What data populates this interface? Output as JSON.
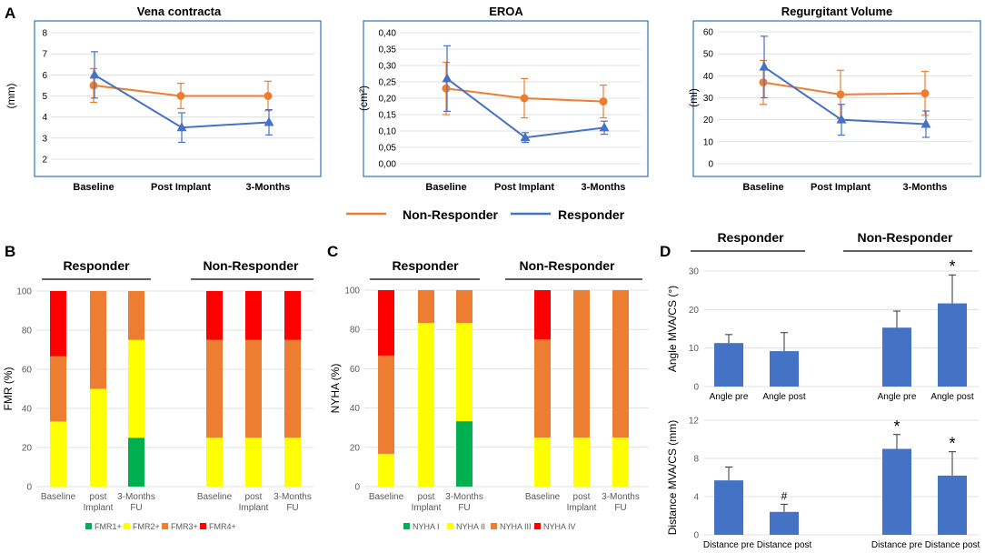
{
  "colors": {
    "orange": "#ED7D31",
    "blue": "#4472C4",
    "fmr1": "#00B050",
    "fmr2": "#FFFF00",
    "fmr3": "#ED7D31",
    "fmr4": "#FF0000",
    "bar": "#4472C4",
    "frame": "#2E75B6",
    "grid": "#D9D9D9",
    "axisText": "#595959"
  },
  "panel_labels": [
    "A",
    "B",
    "C",
    "D"
  ],
  "legend_top": {
    "non_responder": "Non-Responder",
    "responder": "Responder"
  },
  "chart_data": [
    {
      "id": "vena",
      "type": "line",
      "title": "Vena contracta",
      "ylabel": "(mm)",
      "ylim": [
        2,
        8
      ],
      "yticks": [
        "2",
        "3",
        "4",
        "5",
        "6",
        "7",
        "8"
      ],
      "categories": [
        "Baseline",
        "Post Implant",
        "3-Months"
      ],
      "series": [
        {
          "name": "Non-Responder",
          "marker": "circle",
          "values": [
            5.5,
            5.0,
            5.0
          ],
          "err_low": [
            0.8,
            0.6,
            0.7
          ],
          "err_high": [
            0.8,
            0.6,
            0.7
          ]
        },
        {
          "name": "Responder",
          "marker": "triangle",
          "values": [
            6.0,
            3.5,
            3.75
          ],
          "err_low": [
            1.1,
            0.7,
            0.6
          ],
          "err_high": [
            1.1,
            0.7,
            0.6
          ]
        }
      ]
    },
    {
      "id": "eroa",
      "type": "line",
      "title": "EROA",
      "ylabel": "(cm²)",
      "ylim": [
        0,
        0.4
      ],
      "yticks": [
        "0,00",
        "0,05",
        "0,10",
        "0,15",
        "0,20",
        "0,25",
        "0,30",
        "0,35",
        "0,40"
      ],
      "categories": [
        "Baseline",
        "Post Implant",
        "3-Months"
      ],
      "series": [
        {
          "name": "Non-Responder",
          "marker": "circle",
          "values": [
            0.23,
            0.2,
            0.19
          ],
          "err_low": [
            0.08,
            0.06,
            0.05
          ],
          "err_high": [
            0.08,
            0.06,
            0.05
          ]
        },
        {
          "name": "Responder",
          "marker": "triangle",
          "values": [
            0.26,
            0.08,
            0.11
          ],
          "err_low": [
            0.1,
            0.015,
            0.02
          ],
          "err_high": [
            0.1,
            0.015,
            0.02
          ]
        }
      ]
    },
    {
      "id": "regvol",
      "type": "line",
      "title": "Regurgitant Volume",
      "ylabel": "(ml)",
      "ylim": [
        0,
        60
      ],
      "yticks": [
        "0",
        "10",
        "20",
        "30",
        "40",
        "50",
        "60"
      ],
      "categories": [
        "Baseline",
        "Post Implant",
        "3-Months"
      ],
      "series": [
        {
          "name": "Non-Responder",
          "marker": "circle",
          "values": [
            37,
            31.5,
            32
          ],
          "err_low": [
            10,
            11,
            10
          ],
          "err_high": [
            10,
            11,
            10
          ]
        },
        {
          "name": "Responder",
          "marker": "triangle",
          "values": [
            44,
            20,
            18
          ],
          "err_low": [
            14,
            7,
            6
          ],
          "err_high": [
            14,
            7,
            6
          ]
        }
      ]
    },
    {
      "id": "fmr",
      "type": "bar",
      "stacked": true,
      "ylabel": "FMR (%)",
      "ylim": [
        0,
        100
      ],
      "yticks": [
        "0",
        "20",
        "40",
        "60",
        "80",
        "100"
      ],
      "group_labels": [
        "Responder",
        "Non-Responder"
      ],
      "categories": [
        [
          "Baseline"
        ],
        [
          "post",
          "Implant"
        ],
        [
          "3-Months",
          "FU"
        ],
        [
          "Baseline"
        ],
        [
          "post",
          "Implant"
        ],
        [
          "3-Months",
          "FU"
        ]
      ],
      "series": [
        {
          "name": "FMR1+",
          "values": [
            0,
            0,
            25,
            0,
            0,
            0
          ]
        },
        {
          "name": "FMR2+",
          "values": [
            33.3,
            50,
            50,
            25,
            25,
            25
          ]
        },
        {
          "name": "FMR3+",
          "values": [
            33.3,
            50,
            25,
            50,
            50,
            50
          ]
        },
        {
          "name": "FMR4+",
          "values": [
            33.4,
            0,
            0,
            25,
            25,
            25
          ]
        }
      ]
    },
    {
      "id": "nyha",
      "type": "bar",
      "stacked": true,
      "ylabel": "NYHA (%)",
      "ylim": [
        0,
        100
      ],
      "yticks": [
        "0",
        "20",
        "40",
        "60",
        "80",
        "100"
      ],
      "group_labels": [
        "Responder",
        "Non-Responder"
      ],
      "categories": [
        [
          "Baseline"
        ],
        [
          "post",
          "Implant"
        ],
        [
          "3-Months",
          "FU"
        ],
        [
          "Baseline"
        ],
        [
          "post",
          "Implant"
        ],
        [
          "3-Months",
          "FU"
        ]
      ],
      "series": [
        {
          "name": "NYHA I",
          "values": [
            0,
            0,
            33.3,
            0,
            0,
            0
          ]
        },
        {
          "name": "NYHA II",
          "values": [
            16.7,
            83.3,
            50,
            25,
            25,
            25
          ]
        },
        {
          "name": "NYHA III",
          "values": [
            50,
            16.7,
            16.7,
            50,
            75,
            75
          ]
        },
        {
          "name": "NYHA IV",
          "values": [
            33.3,
            0,
            0,
            25,
            0,
            0
          ]
        }
      ]
    },
    {
      "id": "angle",
      "type": "bar",
      "ylabel": "Angle MVA/CS (°)",
      "ylim": [
        0,
        30
      ],
      "yticks": [
        "0",
        "10",
        "20",
        "30"
      ],
      "categories": [
        "Angle pre",
        "Angle post",
        "Angle pre",
        "Angle post"
      ],
      "values": [
        11.3,
        9.2,
        15.3,
        21.6
      ],
      "err": [
        2.2,
        4.8,
        4.3,
        7.4
      ],
      "annotations": [
        "",
        "",
        "",
        "*"
      ]
    },
    {
      "id": "distance",
      "type": "bar",
      "ylabel": "Distance MVA/CS (mm)",
      "ylim": [
        0,
        12
      ],
      "yticks": [
        "0",
        "4",
        "8",
        "12"
      ],
      "categories": [
        "Distance pre",
        "Distance post",
        "Distance pre",
        "Distance post"
      ],
      "values": [
        5.7,
        2.4,
        9.0,
        6.2
      ],
      "err": [
        1.4,
        0.8,
        1.5,
        2.5
      ],
      "annotations": [
        "",
        "#",
        "*",
        "*"
      ]
    }
  ],
  "panel_d_groups": [
    "Responder",
    "Non-Responder"
  ]
}
